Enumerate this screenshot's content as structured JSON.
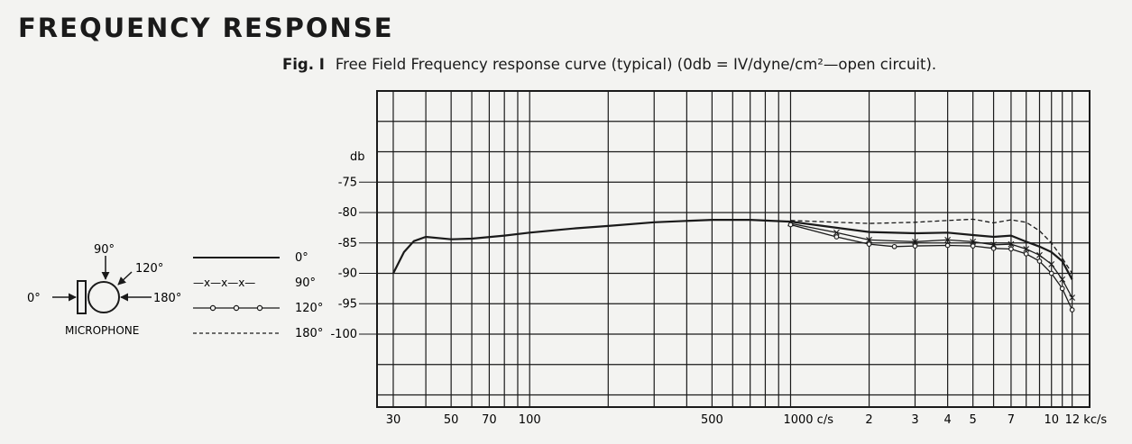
{
  "page": {
    "title": "FREQUENCY RESPONSE",
    "figure_label": "Fig. I",
    "figure_caption": "Free Field Frequency response curve (typical) (0db = IV/dyne/cm²—open circuit)."
  },
  "microphone_diagram": {
    "label": "MICROPHONE",
    "angles": [
      "0°",
      "90°",
      "120°",
      "180°"
    ]
  },
  "legend": [
    {
      "sample": "",
      "label": "0°",
      "style": "solid"
    },
    {
      "sample": "—x—x—x—",
      "label": "90°",
      "style": "cross"
    },
    {
      "sample": "",
      "label": "120°",
      "style": "circle"
    },
    {
      "sample": "",
      "label": "180°",
      "style": "dashed"
    }
  ],
  "chart_data": {
    "type": "line",
    "x_scale": "log",
    "xlim": [
      26,
      14000
    ],
    "ylim": [
      -112,
      -60
    ],
    "grid": true,
    "ylabel": "db",
    "y_ticks": [
      {
        "value": -75,
        "label": "-75"
      },
      {
        "value": -80,
        "label": "-80"
      },
      {
        "value": -85,
        "label": "-85"
      },
      {
        "value": -90,
        "label": "-90"
      },
      {
        "value": -95,
        "label": "-95"
      },
      {
        "value": -100,
        "label": "-100"
      }
    ],
    "x_tick_labels": [
      {
        "value": 30,
        "label": "30"
      },
      {
        "value": 50,
        "label": "50"
      },
      {
        "value": 70,
        "label": "70"
      },
      {
        "value": 100,
        "label": "100"
      },
      {
        "value": 500,
        "label": "500"
      },
      {
        "value": 1000,
        "label": "1000 c/s"
      },
      {
        "value": 2000,
        "label": "2"
      },
      {
        "value": 3000,
        "label": "3"
      },
      {
        "value": 4000,
        "label": "4"
      },
      {
        "value": 5000,
        "label": "5"
      },
      {
        "value": 7000,
        "label": "7"
      },
      {
        "value": 10000,
        "label": "10"
      },
      {
        "value": 12000,
        "label": "12 kc/s"
      }
    ],
    "x_gridlines": [
      30,
      40,
      50,
      60,
      70,
      80,
      90,
      100,
      200,
      300,
      400,
      500,
      600,
      700,
      800,
      900,
      1000,
      2000,
      3000,
      4000,
      5000,
      6000,
      7000,
      8000,
      9000,
      10000,
      11000,
      12000
    ],
    "series": [
      {
        "name": "0°",
        "style": "solid",
        "x": [
          30,
          33,
          36,
          40,
          50,
          60,
          80,
          100,
          150,
          200,
          300,
          500,
          700,
          1000,
          1500,
          2000,
          3000,
          4000,
          5000,
          6000,
          7000,
          8000,
          9000,
          10000,
          11000,
          12000
        ],
        "y": [
          -90,
          -86.5,
          -84.7,
          -84,
          -84.4,
          -84.3,
          -83.8,
          -83.3,
          -82.6,
          -82.2,
          -81.6,
          -81.2,
          -81.2,
          -81.5,
          -82.5,
          -83.2,
          -83.4,
          -83.3,
          -83.7,
          -84,
          -83.8,
          -84.8,
          -85.6,
          -86.5,
          -88,
          -91
        ]
      },
      {
        "name": "90°",
        "style": "cross",
        "x": [
          1000,
          1500,
          2000,
          3000,
          4000,
          5000,
          6000,
          7000,
          8000,
          9000,
          10000,
          11000,
          12000
        ],
        "y": [
          -81.8,
          -83.3,
          -84.5,
          -84.8,
          -84.5,
          -84.8,
          -85.3,
          -85.2,
          -86,
          -87,
          -88.5,
          -91,
          -94
        ]
      },
      {
        "name": "120°",
        "style": "circle",
        "x": [
          1000,
          1500,
          2000,
          2500,
          3000,
          4000,
          5000,
          6000,
          7000,
          8000,
          9000,
          10000,
          11000,
          12000
        ],
        "y": [
          -82,
          -84,
          -85.2,
          -85.6,
          -85.5,
          -85.4,
          -85.5,
          -85.9,
          -86,
          -86.8,
          -88,
          -90,
          -92.5,
          -96
        ]
      },
      {
        "name": "180°",
        "style": "dashed",
        "x": [
          1000,
          1500,
          2000,
          3000,
          4000,
          5000,
          6000,
          7000,
          8000,
          9000,
          10000,
          11000,
          12000
        ],
        "y": [
          -81.3,
          -81.6,
          -81.8,
          -81.6,
          -81.3,
          -81.1,
          -81.7,
          -81.2,
          -81.6,
          -83,
          -85,
          -87.5,
          -90
        ]
      }
    ]
  },
  "colors": {
    "ink": "#1a1a1a",
    "paper": "#f3f3f1"
  }
}
